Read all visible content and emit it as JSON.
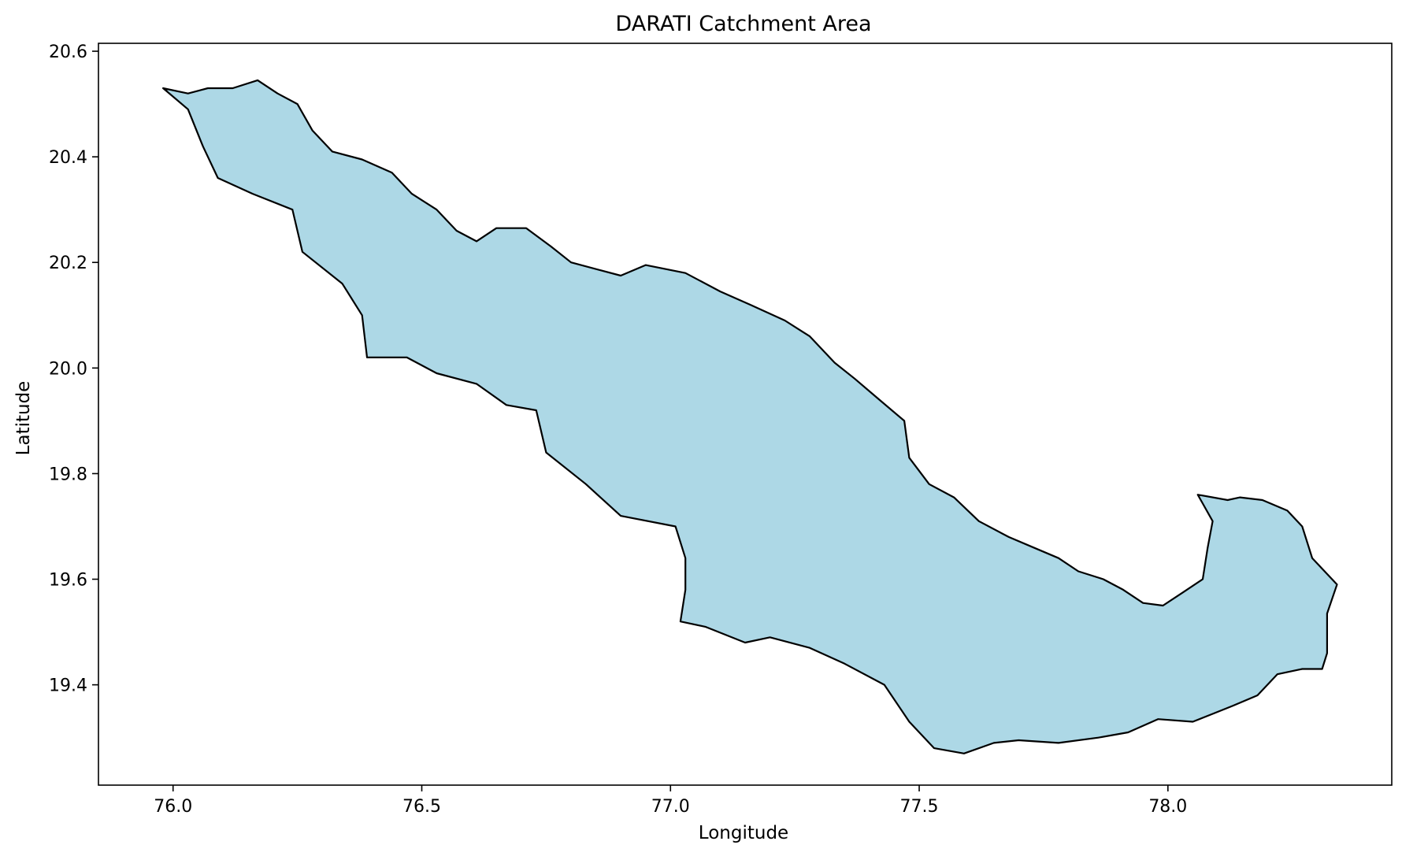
{
  "chart_data": {
    "type": "map",
    "title": "DARATI Catchment Area",
    "xlabel": "Longitude",
    "ylabel": "Latitude",
    "xlim": [
      75.85,
      78.45
    ],
    "ylim": [
      19.21,
      20.615
    ],
    "xticks": [
      76.0,
      76.5,
      77.0,
      77.5,
      78.0
    ],
    "xtick_labels": [
      "76.0",
      "76.5",
      "77.0",
      "77.5",
      "78.0"
    ],
    "yticks": [
      19.4,
      19.6,
      19.8,
      20.0,
      20.2,
      20.4,
      20.6
    ],
    "ytick_labels": [
      "19.4",
      "19.6",
      "19.8",
      "20.0",
      "20.2",
      "20.4",
      "20.6"
    ],
    "grid": false,
    "legend": "none",
    "fill_color": "#add8e6",
    "edge_color": "#000000",
    "boundary": [
      [
        75.98,
        20.53
      ],
      [
        76.03,
        20.52
      ],
      [
        76.07,
        20.53
      ],
      [
        76.12,
        20.53
      ],
      [
        76.17,
        20.545
      ],
      [
        76.21,
        20.52
      ],
      [
        76.25,
        20.5
      ],
      [
        76.28,
        20.45
      ],
      [
        76.32,
        20.41
      ],
      [
        76.38,
        20.395
      ],
      [
        76.44,
        20.37
      ],
      [
        76.48,
        20.33
      ],
      [
        76.53,
        20.3
      ],
      [
        76.57,
        20.26
      ],
      [
        76.61,
        20.24
      ],
      [
        76.65,
        20.265
      ],
      [
        76.71,
        20.265
      ],
      [
        76.76,
        20.23
      ],
      [
        76.8,
        20.2
      ],
      [
        76.86,
        20.185
      ],
      [
        76.9,
        20.175
      ],
      [
        76.95,
        20.195
      ],
      [
        77.03,
        20.18
      ],
      [
        77.1,
        20.145
      ],
      [
        77.16,
        20.12
      ],
      [
        77.23,
        20.09
      ],
      [
        77.28,
        20.06
      ],
      [
        77.33,
        20.01
      ],
      [
        77.37,
        19.98
      ],
      [
        77.42,
        19.94
      ],
      [
        77.47,
        19.9
      ],
      [
        77.48,
        19.83
      ],
      [
        77.52,
        19.78
      ],
      [
        77.57,
        19.755
      ],
      [
        77.62,
        19.71
      ],
      [
        77.68,
        19.68
      ],
      [
        77.73,
        19.66
      ],
      [
        77.78,
        19.64
      ],
      [
        77.82,
        19.615
      ],
      [
        77.87,
        19.6
      ],
      [
        77.91,
        19.58
      ],
      [
        77.95,
        19.555
      ],
      [
        77.99,
        19.55
      ],
      [
        78.03,
        19.575
      ],
      [
        78.07,
        19.6
      ],
      [
        78.08,
        19.66
      ],
      [
        78.09,
        19.71
      ],
      [
        78.06,
        19.76
      ],
      [
        78.12,
        19.75
      ],
      [
        78.145,
        19.755
      ],
      [
        78.19,
        19.75
      ],
      [
        78.24,
        19.73
      ],
      [
        78.27,
        19.7
      ],
      [
        78.29,
        19.64
      ],
      [
        78.34,
        19.59
      ],
      [
        78.32,
        19.535
      ],
      [
        78.32,
        19.46
      ],
      [
        78.31,
        19.43
      ],
      [
        78.27,
        19.43
      ],
      [
        78.22,
        19.42
      ],
      [
        78.18,
        19.38
      ],
      [
        78.13,
        19.36
      ],
      [
        78.09,
        19.345
      ],
      [
        78.05,
        19.33
      ],
      [
        77.98,
        19.335
      ],
      [
        77.92,
        19.31
      ],
      [
        77.86,
        19.3
      ],
      [
        77.78,
        19.29
      ],
      [
        77.7,
        19.295
      ],
      [
        77.65,
        19.29
      ],
      [
        77.59,
        19.27
      ],
      [
        77.53,
        19.28
      ],
      [
        77.48,
        19.33
      ],
      [
        77.43,
        19.4
      ],
      [
        77.35,
        19.44
      ],
      [
        77.28,
        19.47
      ],
      [
        77.2,
        19.49
      ],
      [
        77.15,
        19.48
      ],
      [
        77.07,
        19.51
      ],
      [
        77.02,
        19.52
      ],
      [
        77.03,
        19.58
      ],
      [
        77.03,
        19.64
      ],
      [
        77.01,
        19.7
      ],
      [
        76.9,
        19.72
      ],
      [
        76.83,
        19.78
      ],
      [
        76.75,
        19.84
      ],
      [
        76.73,
        19.92
      ],
      [
        76.67,
        19.93
      ],
      [
        76.61,
        19.97
      ],
      [
        76.53,
        19.99
      ],
      [
        76.47,
        20.02
      ],
      [
        76.39,
        20.02
      ],
      [
        76.38,
        20.1
      ],
      [
        76.34,
        20.16
      ],
      [
        76.26,
        20.22
      ],
      [
        76.24,
        20.3
      ],
      [
        76.16,
        20.33
      ],
      [
        76.09,
        20.36
      ],
      [
        76.06,
        20.42
      ],
      [
        76.03,
        20.49
      ],
      [
        75.98,
        20.53
      ]
    ]
  }
}
